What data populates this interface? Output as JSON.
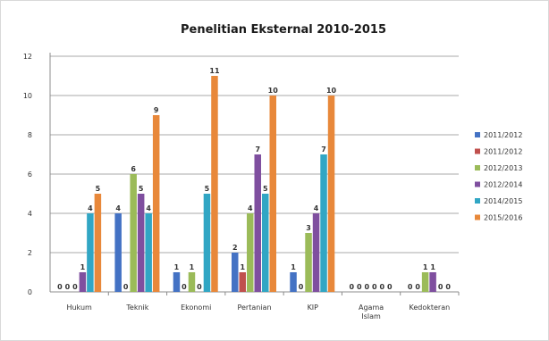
{
  "chart_data": {
    "type": "bar",
    "title": "Penelitian Eksternal 2010-2015",
    "xlabel": "",
    "ylabel": "",
    "ylim": [
      0,
      12
    ],
    "yticks": [
      0,
      2,
      4,
      6,
      8,
      10,
      12
    ],
    "grid": true,
    "legend_position": "right",
    "categories": [
      [
        "Hukum"
      ],
      [
        "Teknik"
      ],
      [
        "Ekonomi"
      ],
      [
        "Pertanian"
      ],
      [
        "KIP"
      ],
      [
        "Agama",
        "Islam"
      ],
      [
        "Kedokteran"
      ]
    ],
    "series": [
      {
        "name": "2011/2012",
        "color": "#4472c4",
        "values": [
          0,
          4,
          1,
          2,
          1,
          0,
          0
        ]
      },
      {
        "name": "2011/2012",
        "color": "#c0504d",
        "values": [
          0,
          0,
          0,
          1,
          0,
          0,
          0
        ]
      },
      {
        "name": "2012/2013",
        "color": "#9bbb59",
        "values": [
          0,
          6,
          1,
          4,
          3,
          0,
          1
        ]
      },
      {
        "name": "2012/2014",
        "color": "#7f4f9f",
        "values": [
          1,
          5,
          0,
          7,
          4,
          0,
          1
        ]
      },
      {
        "name": "2014/2015",
        "color": "#31a6c4",
        "values": [
          4,
          4,
          5,
          5,
          7,
          0,
          0
        ]
      },
      {
        "name": "2015/2016",
        "color": "#e8883a",
        "values": [
          5,
          9,
          11,
          10,
          10,
          0,
          0
        ]
      }
    ]
  }
}
